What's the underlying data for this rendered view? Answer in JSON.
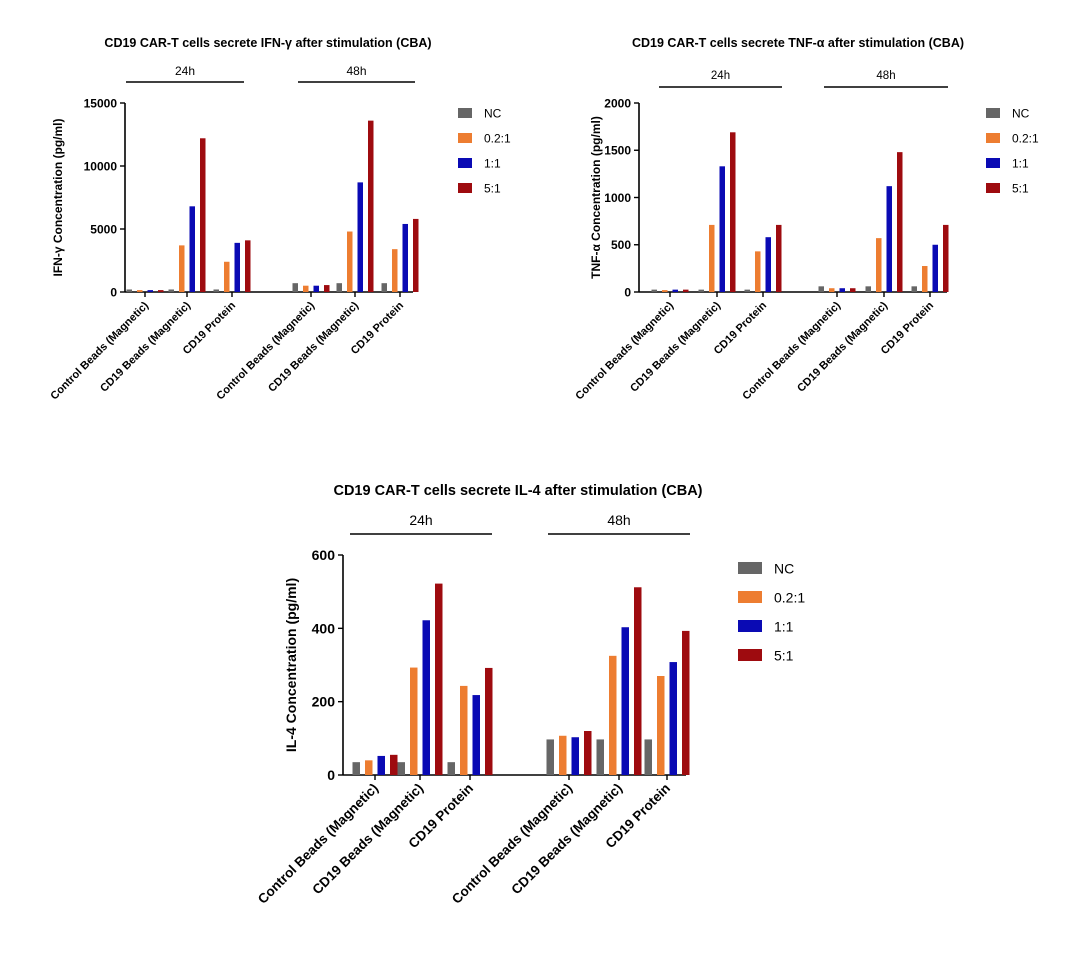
{
  "chart_data": [
    {
      "type": "bar",
      "title": "CD19 CAR-T cells secrete IFN-γ after stimulation (CBA)",
      "ylabel": "IFN-γ Concentration (pg/ml)",
      "xlabel": "",
      "ylim": [
        0,
        15000
      ],
      "yticks": [
        0,
        5000,
        10000,
        15000
      ],
      "groups": [
        "24h",
        "48h"
      ],
      "categories": [
        "Control Beads (Magnetic)",
        "CD19 Beads (Magnetic)",
        "CD19 Protein"
      ],
      "series": [
        {
          "name": "NC",
          "color": "#666666",
          "values": [
            [
              200,
              200,
              200
            ],
            [
              700,
              700,
              700
            ]
          ]
        },
        {
          "name": "0.2:1",
          "color": "#ed7d31",
          "values": [
            [
              150,
              3700,
              2400
            ],
            [
              500,
              4800,
              3400
            ]
          ]
        },
        {
          "name": "1:1",
          "color": "#0a0ab4",
          "values": [
            [
              150,
              6800,
              3900
            ],
            [
              500,
              8700,
              5400
            ]
          ]
        },
        {
          "name": "5:1",
          "color": "#9e0b0f",
          "values": [
            [
              150,
              12200,
              4100
            ],
            [
              550,
              13600,
              5800
            ]
          ]
        }
      ],
      "legend": "right"
    },
    {
      "type": "bar",
      "title": "CD19 CAR-T cells secrete TNF-α after stimulation (CBA)",
      "ylabel": "TNF-α Concentration (pg/ml)",
      "xlabel": "",
      "ylim": [
        0,
        2000
      ],
      "yticks": [
        0,
        500,
        1000,
        1500,
        2000
      ],
      "groups": [
        "24h",
        "48h"
      ],
      "categories": [
        "Control Beads (Magnetic)",
        "CD19 Beads (Magnetic)",
        "CD19 Protein"
      ],
      "series": [
        {
          "name": "NC",
          "color": "#666666",
          "values": [
            [
              25,
              25,
              25
            ],
            [
              60,
              60,
              60
            ]
          ]
        },
        {
          "name": "0.2:1",
          "color": "#ed7d31",
          "values": [
            [
              20,
              710,
              430
            ],
            [
              40,
              570,
              275
            ]
          ]
        },
        {
          "name": "1:1",
          "color": "#0a0ab4",
          "values": [
            [
              25,
              1330,
              580
            ],
            [
              40,
              1120,
              500
            ]
          ]
        },
        {
          "name": "5:1",
          "color": "#9e0b0f",
          "values": [
            [
              25,
              1690,
              710
            ],
            [
              40,
              1480,
              710
            ]
          ]
        }
      ],
      "legend": "right"
    },
    {
      "type": "bar",
      "title": "CD19 CAR-T cells secrete IL-4 after stimulation (CBA)",
      "ylabel": "IL-4 Concentration (pg/ml)",
      "xlabel": "",
      "ylim": [
        0,
        600
      ],
      "yticks": [
        0,
        200,
        400,
        600
      ],
      "groups": [
        "24h",
        "48h"
      ],
      "categories": [
        "Control Beads (Magnetic)",
        "CD19 Beads (Magnetic)",
        "CD19 Protein"
      ],
      "series": [
        {
          "name": "NC",
          "color": "#666666",
          "values": [
            [
              35,
              35,
              35
            ],
            [
              97,
              97,
              97
            ]
          ]
        },
        {
          "name": "0.2:1",
          "color": "#ed7d31",
          "values": [
            [
              40,
              293,
              243
            ],
            [
              107,
              325,
              270
            ]
          ]
        },
        {
          "name": "1:1",
          "color": "#0a0ab4",
          "values": [
            [
              52,
              422,
              218
            ],
            [
              103,
              403,
              308
            ]
          ]
        },
        {
          "name": "5:1",
          "color": "#9e0b0f",
          "values": [
            [
              55,
              522,
              292
            ],
            [
              120,
              512,
              393
            ]
          ]
        }
      ],
      "legend": "right"
    }
  ]
}
